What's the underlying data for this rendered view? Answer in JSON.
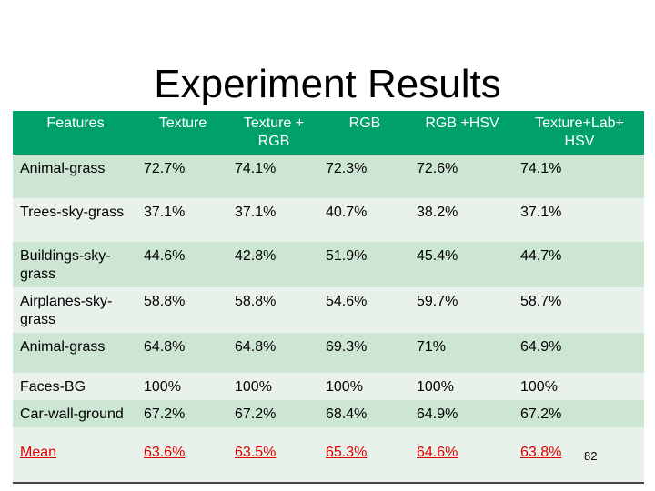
{
  "title": "Experiment Results",
  "table": {
    "header": [
      "Features",
      "Texture",
      "Texture + RGB",
      "RGB",
      "RGB +HSV",
      "Texture+Lab+ HSV"
    ],
    "rows": [
      [
        "Animal-grass",
        "72.7%",
        "74.1%",
        "72.3%",
        "72.6%",
        "74.1%"
      ],
      [
        "Trees-sky-grass",
        "37.1%",
        "37.1%",
        "40.7%",
        "38.2%",
        "37.1%"
      ],
      [
        "Buildings-sky-grass",
        "44.6%",
        "42.8%",
        "51.9%",
        "45.4%",
        "44.7%"
      ],
      [
        "Airplanes-sky-grass",
        "58.8%",
        "58.8%",
        "54.6%",
        "59.7%",
        "58.7%"
      ],
      [
        "Animal-grass",
        "64.8%",
        "64.8%",
        "69.3%",
        "71%",
        "64.9%"
      ],
      [
        "Faces-BG",
        "100%",
        "100%",
        "100%",
        "100%",
        "100%"
      ],
      [
        "Car-wall-ground",
        "67.2%",
        "67.2%",
        "68.4%",
        "64.9%",
        "67.2%"
      ]
    ],
    "mean": [
      "Mean",
      "63.6%",
      "63.5%",
      "65.3%",
      "64.6%",
      "63.8%"
    ]
  },
  "page_number": "82"
}
